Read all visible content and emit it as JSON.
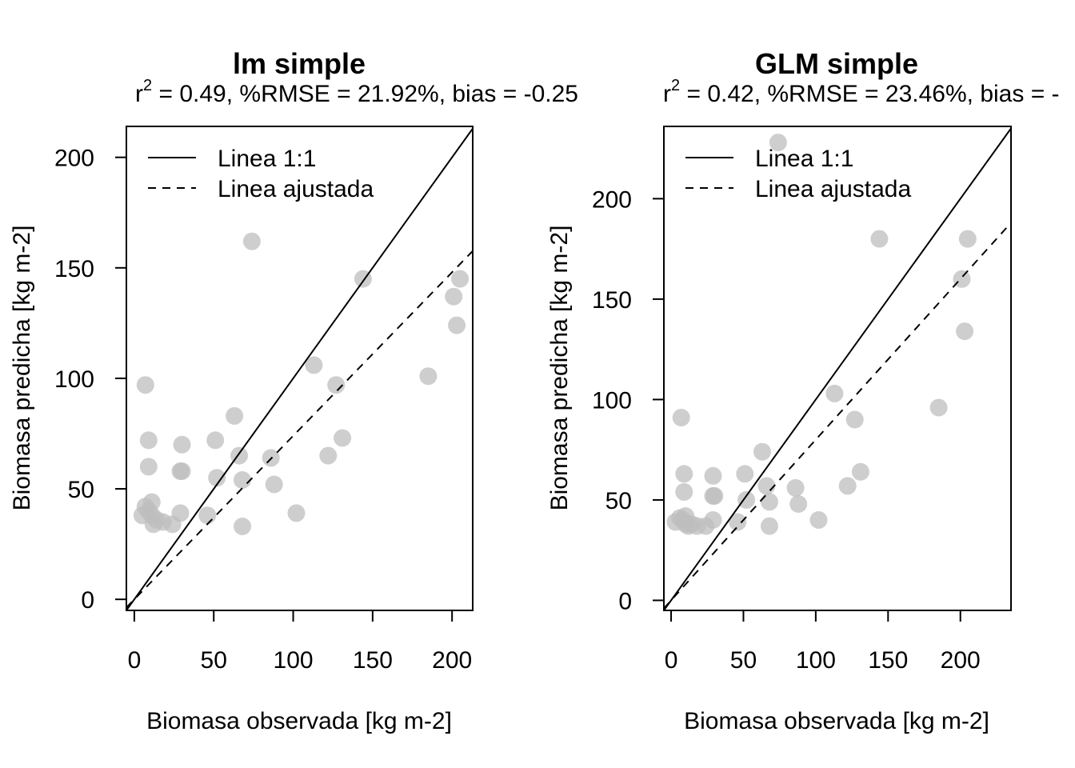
{
  "chart_data": [
    {
      "type": "scatter",
      "title": "lm simple",
      "subtitle": {
        "r2_prefix": "r",
        "r2_exp": "2",
        "rest": " = 0.49, %RMSE = 21.92%, bias = -0.25"
      },
      "xlabel": "Biomasa observada [kg m-2]",
      "ylabel": "Biomasa predicha [kg m-2]",
      "xlim": [
        -5,
        213
      ],
      "ylim": [
        -5,
        214
      ],
      "xticks": [
        0,
        50,
        100,
        150,
        200
      ],
      "yticks": [
        0,
        50,
        100,
        150,
        200
      ],
      "legend": {
        "position": "top-left",
        "entries": [
          {
            "label": "Linea 1:1",
            "style": "solid"
          },
          {
            "label": "Linea ajustada",
            "style": "dashed"
          }
        ]
      },
      "line_1to1": {
        "slope": 1,
        "intercept": 0
      },
      "fitted_line": {
        "slope": 0.74,
        "intercept": 0
      },
      "point_color": "#bebebe",
      "points": [
        [
          7,
          97
        ],
        [
          9,
          72
        ],
        [
          9,
          60
        ],
        [
          5,
          38
        ],
        [
          7,
          42
        ],
        [
          9,
          40
        ],
        [
          11,
          38
        ],
        [
          11,
          44
        ],
        [
          12,
          34
        ],
        [
          14,
          36
        ],
        [
          18,
          35
        ],
        [
          24,
          34
        ],
        [
          29,
          58
        ],
        [
          30,
          58
        ],
        [
          30,
          70
        ],
        [
          29,
          39
        ],
        [
          46,
          38
        ],
        [
          51,
          72
        ],
        [
          52,
          55
        ],
        [
          63,
          83
        ],
        [
          66,
          65
        ],
        [
          68,
          54
        ],
        [
          68,
          33
        ],
        [
          74,
          162
        ],
        [
          86,
          64
        ],
        [
          88,
          52
        ],
        [
          102,
          39
        ],
        [
          113,
          106
        ],
        [
          122,
          65
        ],
        [
          127,
          97
        ],
        [
          131,
          73
        ],
        [
          144,
          145
        ],
        [
          185,
          101
        ],
        [
          201,
          137
        ],
        [
          203,
          124
        ],
        [
          205,
          145
        ]
      ]
    },
    {
      "type": "scatter",
      "title": "GLM simple",
      "subtitle": {
        "r2_prefix": "r",
        "r2_exp": "2",
        "rest": " = 0.42, %RMSE = 23.46%, bias = -"
      },
      "xlabel": "Biomasa observada [kg m-2]",
      "ylabel": "Biomasa predicha [kg m-2]",
      "xlim": [
        -5,
        235
      ],
      "ylim": [
        -5,
        236
      ],
      "xticks": [
        0,
        50,
        100,
        150,
        200
      ],
      "yticks": [
        0,
        50,
        100,
        150,
        200
      ],
      "legend": {
        "position": "top-left",
        "entries": [
          {
            "label": "Linea 1:1",
            "style": "solid"
          },
          {
            "label": "Linea ajustada",
            "style": "dashed"
          }
        ]
      },
      "line_1to1": {
        "slope": 1,
        "intercept": 0
      },
      "fitted_line": {
        "slope": 0.8,
        "intercept": 0
      },
      "point_color": "#bebebe",
      "points": [
        [
          7,
          91
        ],
        [
          9,
          63
        ],
        [
          9,
          54
        ],
        [
          3,
          39
        ],
        [
          6,
          41
        ],
        [
          8,
          40
        ],
        [
          10,
          38
        ],
        [
          10,
          42
        ],
        [
          12,
          37
        ],
        [
          14,
          38
        ],
        [
          18,
          37
        ],
        [
          24,
          37
        ],
        [
          29,
          62
        ],
        [
          30,
          52
        ],
        [
          29,
          52
        ],
        [
          29,
          40
        ],
        [
          46,
          39
        ],
        [
          51,
          63
        ],
        [
          52,
          50
        ],
        [
          63,
          74
        ],
        [
          66,
          57
        ],
        [
          68,
          49
        ],
        [
          68,
          37
        ],
        [
          74,
          228
        ],
        [
          86,
          56
        ],
        [
          88,
          48
        ],
        [
          102,
          40
        ],
        [
          113,
          103
        ],
        [
          122,
          57
        ],
        [
          127,
          90
        ],
        [
          131,
          64
        ],
        [
          144,
          180
        ],
        [
          185,
          96
        ],
        [
          201,
          160
        ],
        [
          203,
          134
        ],
        [
          205,
          180
        ]
      ]
    }
  ]
}
